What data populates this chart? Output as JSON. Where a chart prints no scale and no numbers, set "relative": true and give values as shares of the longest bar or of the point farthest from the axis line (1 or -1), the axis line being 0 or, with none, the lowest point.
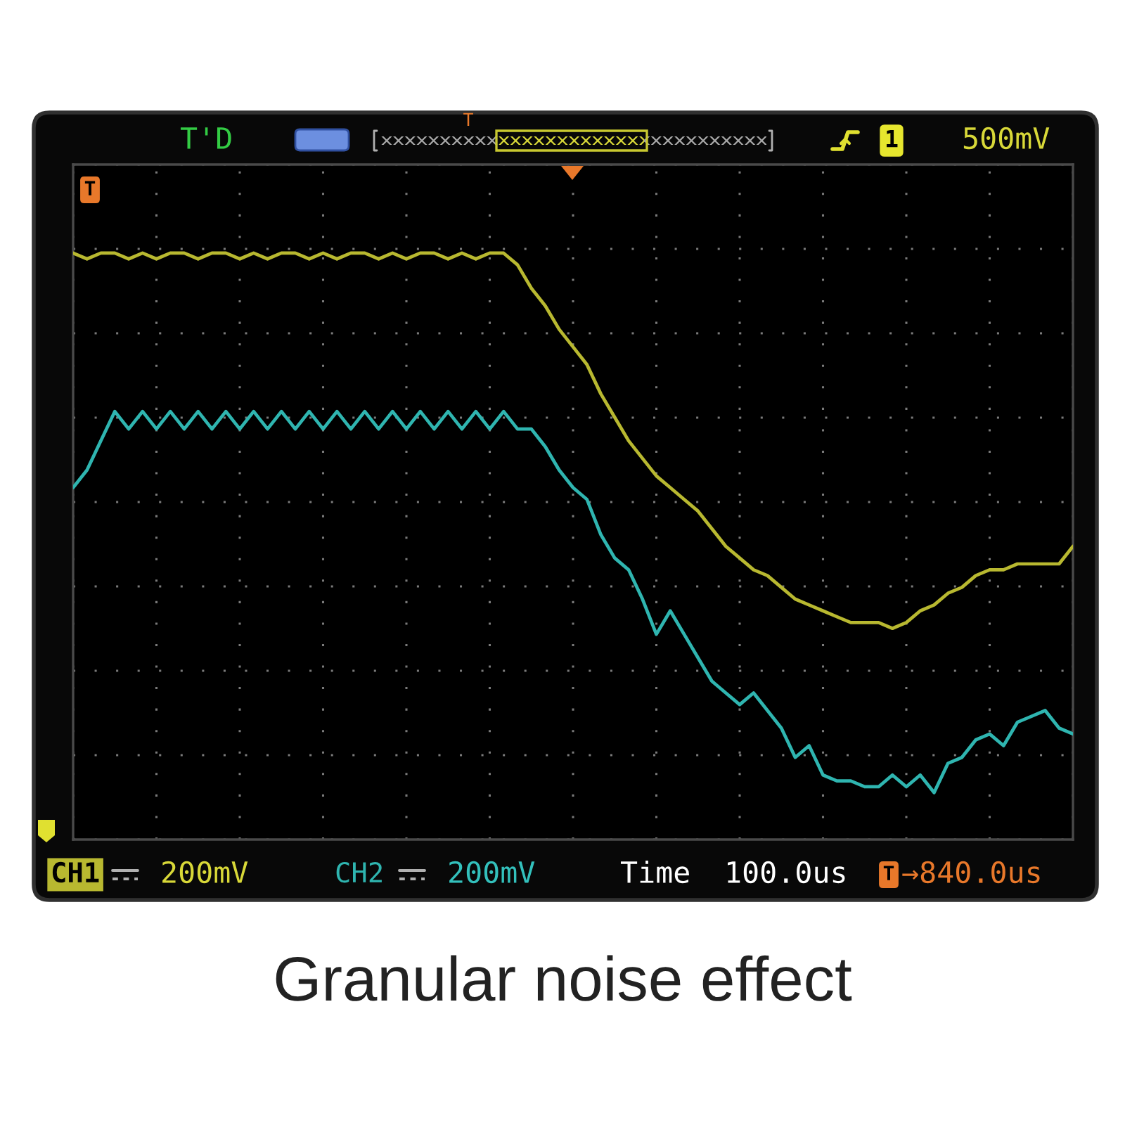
{
  "chart_data": {
    "type": "line",
    "title": "Granular noise effect",
    "relative": true,
    "grid": true,
    "categories": [
      null,
      null,
      null,
      null,
      null,
      null,
      null,
      null,
      null,
      null,
      null,
      null,
      null,
      null,
      null,
      null,
      null,
      null,
      null,
      null,
      null,
      null,
      null,
      null,
      null,
      null,
      null,
      null,
      null,
      null,
      null,
      null,
      null,
      null,
      null,
      null,
      null,
      null,
      null,
      null,
      null,
      null,
      null,
      null,
      null,
      null,
      null,
      null,
      null,
      null,
      null,
      null,
      null,
      null,
      null,
      null,
      null,
      null,
      null,
      null,
      null,
      null,
      null,
      null,
      null,
      null,
      null,
      null,
      null,
      null,
      null,
      null,
      null
    ],
    "series": [
      {
        "name": "CH1",
        "color": "#b8b830",
        "values": [
          1.0,
          0.99,
          1.0,
          1.0,
          0.99,
          1.0,
          0.99,
          1.0,
          1.0,
          0.99,
          1.0,
          1.0,
          0.99,
          1.0,
          0.99,
          1.0,
          1.0,
          0.99,
          1.0,
          0.99,
          1.0,
          1.0,
          0.99,
          1.0,
          0.99,
          1.0,
          1.0,
          0.99,
          1.0,
          0.99,
          1.0,
          1.0,
          0.98,
          0.94,
          0.91,
          0.87,
          0.84,
          0.81,
          0.76,
          0.72,
          0.68,
          0.65,
          0.62,
          0.6,
          0.58,
          0.56,
          0.53,
          0.5,
          0.48,
          0.46,
          0.45,
          0.43,
          0.41,
          0.4,
          0.39,
          0.38,
          0.37,
          0.37,
          0.37,
          0.36,
          0.37,
          0.39,
          0.4,
          0.42,
          0.43,
          0.45,
          0.46,
          0.46,
          0.47,
          0.47,
          0.47,
          0.47,
          0.5
        ]
      },
      {
        "name": "CH2",
        "color": "#2fb5b0",
        "values": [
          0.6,
          0.63,
          0.68,
          0.73,
          0.7,
          0.73,
          0.7,
          0.73,
          0.7,
          0.73,
          0.7,
          0.73,
          0.7,
          0.73,
          0.7,
          0.73,
          0.7,
          0.73,
          0.7,
          0.73,
          0.7,
          0.73,
          0.7,
          0.73,
          0.7,
          0.73,
          0.7,
          0.73,
          0.7,
          0.73,
          0.7,
          0.73,
          0.7,
          0.7,
          0.67,
          0.63,
          0.6,
          0.58,
          0.52,
          0.48,
          0.46,
          0.41,
          0.35,
          0.39,
          0.35,
          0.31,
          0.27,
          0.25,
          0.23,
          0.25,
          0.22,
          0.19,
          0.14,
          0.16,
          0.11,
          0.1,
          0.1,
          0.09,
          0.09,
          0.11,
          0.09,
          0.11,
          0.08,
          0.13,
          0.14,
          0.17,
          0.18,
          0.16,
          0.2,
          0.21,
          0.22,
          0.19,
          0.18
        ]
      }
    ],
    "annotations": [
      "T'D",
      "1",
      "500mV",
      "T",
      "T",
      "200mV",
      "200mV",
      "Time",
      "100.0us",
      "T",
      "→840.0us"
    ]
  }
}
